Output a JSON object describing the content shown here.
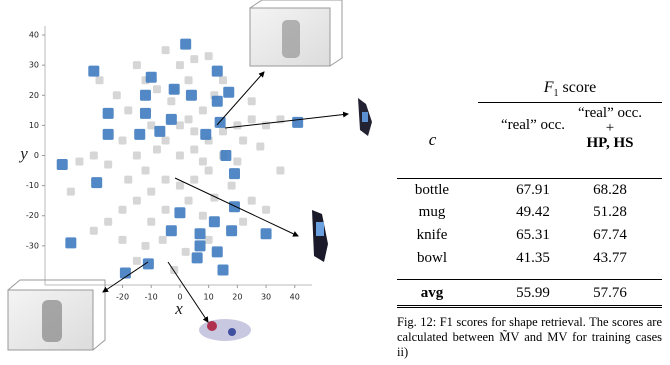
{
  "chart_data": {
    "type": "scatter",
    "xlabel": "x",
    "ylabel": "y",
    "xlim": [
      -47,
      46
    ],
    "ylim": [
      -43,
      43
    ],
    "xticks": [
      -20,
      -10,
      0,
      10,
      20,
      30,
      40
    ],
    "yticks": [
      -30,
      -20,
      -10,
      0,
      10,
      20,
      30,
      40
    ],
    "series": [
      {
        "color": "#c8c8c8",
        "x": [
          -5,
          0,
          5,
          -15,
          10,
          -8,
          3,
          8,
          -3,
          0,
          5,
          -10,
          -18,
          -20,
          -30,
          -35,
          -25,
          -15,
          -8,
          0,
          5,
          10,
          15,
          20,
          25,
          30,
          35,
          22,
          28,
          10,
          5,
          0,
          -5,
          -10,
          -15,
          -20,
          -25,
          -30,
          -20,
          -10,
          -5,
          3,
          8,
          12,
          18,
          25,
          30,
          22,
          -12,
          -6,
          2,
          10,
          -2,
          -15,
          15,
          20,
          -22,
          -28,
          -12,
          15,
          25,
          -5,
          -12,
          8,
          3,
          -2,
          35,
          -38,
          -18,
          12
        ],
        "values": [
          35,
          30,
          32,
          30,
          33,
          22,
          25,
          15,
          18,
          10,
          8,
          10,
          15,
          5,
          0,
          -2,
          -3,
          0,
          2,
          0,
          2,
          5,
          8,
          10,
          12,
          10,
          12,
          5,
          3,
          -5,
          -8,
          -10,
          -8,
          -12,
          -15,
          -18,
          -22,
          -25,
          -28,
          -22,
          -18,
          -15,
          -20,
          -14,
          -10,
          -15,
          -18,
          -22,
          -30,
          -28,
          -32,
          -28,
          -38,
          -35,
          0,
          -2,
          20,
          25,
          25,
          25,
          18,
          5,
          -5,
          -2,
          12,
          22,
          -5,
          -12,
          -8,
          20
        ]
      },
      {
        "color": "#3f7bbf",
        "x": [
          2,
          -30,
          13,
          -10,
          -2,
          4,
          -12,
          -25,
          -12,
          -3,
          13,
          17,
          14,
          41,
          -25,
          -14,
          -7,
          9,
          16,
          19,
          -41,
          -29,
          0,
          19,
          -3,
          7,
          12,
          18,
          30,
          -38,
          -11,
          -19,
          7,
          13,
          15,
          6
        ],
        "values": [
          37,
          28,
          28,
          26,
          22,
          20,
          20,
          14,
          14,
          12,
          18,
          21,
          11,
          11,
          7,
          7,
          8,
          7,
          0,
          -6,
          -3,
          -9,
          -19,
          -17,
          -25,
          -26,
          -22,
          -25,
          -26,
          -29,
          -36,
          -39,
          -30,
          -32,
          -38,
          -34
        ]
      }
    ]
  },
  "table": {
    "title": "F",
    "title_sub": "1",
    "title_rest": "score",
    "header": [
      "c",
      "“real” occ.",
      {
        "text": "“real” occ. +",
        "emph": "HP, HS"
      }
    ],
    "rows": [
      [
        "bottle",
        "67.91",
        "68.28"
      ],
      [
        "mug",
        "49.42",
        "51.28"
      ],
      [
        "knife",
        "65.31",
        "67.74"
      ],
      [
        "bowl",
        "41.35",
        "43.77"
      ]
    ],
    "summary": [
      "avg",
      "55.99",
      "57.76"
    ]
  },
  "caption": "Fig. 12: F1 scores for shape retrieval. The scores are calculated between M̃V and MV for training cases ii)"
}
